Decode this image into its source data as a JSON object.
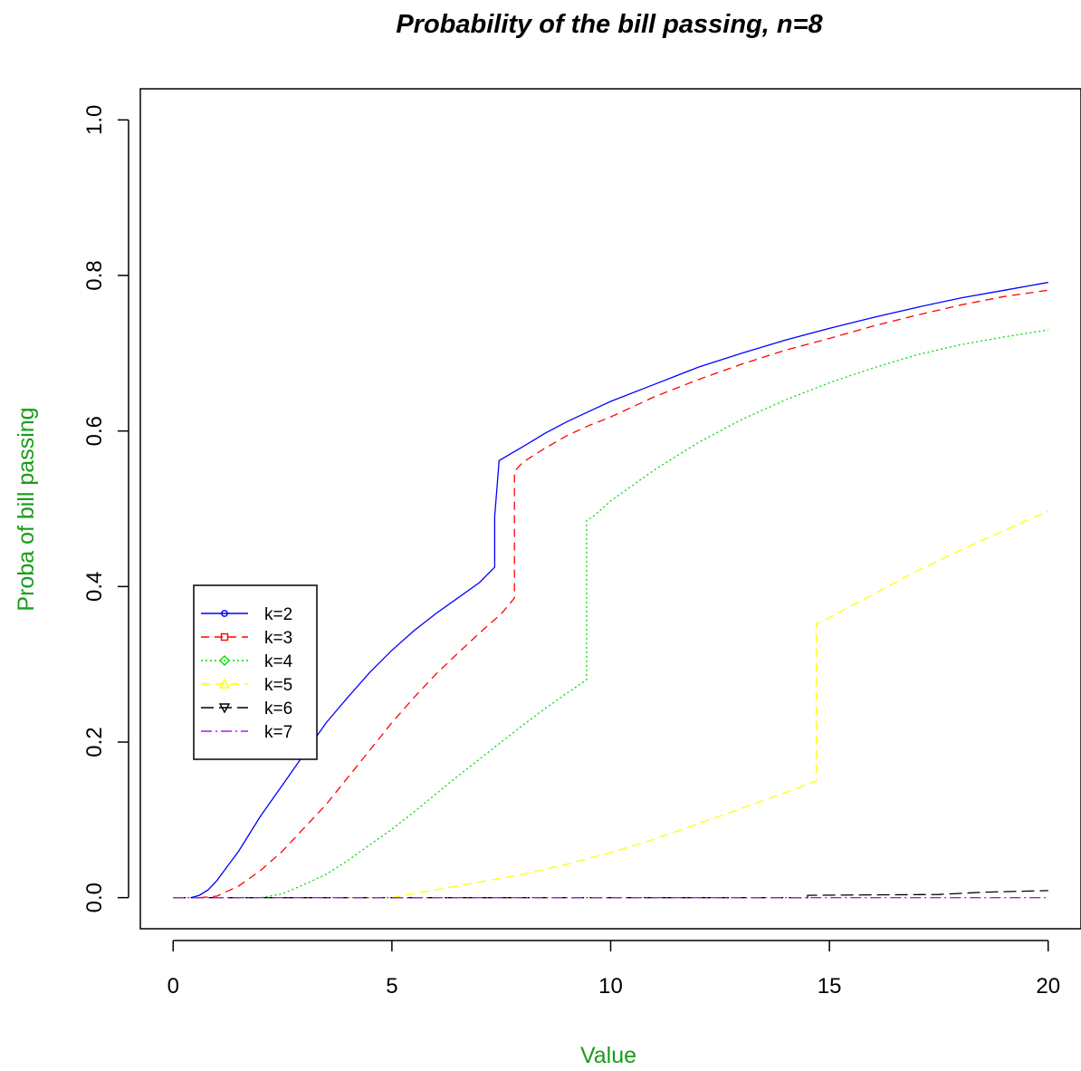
{
  "chart_data": {
    "type": "line",
    "title": "Probability of the bill passing, n=8",
    "xlabel": "Value",
    "ylabel": "Proba of bill passing",
    "label_color": "#1a9c1a",
    "xlim": [
      -0.75,
      20.75
    ],
    "ylim": [
      -0.04,
      1.04
    ],
    "x_ticks": [
      0,
      5,
      10,
      15,
      20
    ],
    "x_tick_labels": [
      "0",
      "5",
      "10",
      "15",
      "20"
    ],
    "y_ticks": [
      0.0,
      0.2,
      0.4,
      0.6,
      0.8,
      1.0
    ],
    "y_tick_labels": [
      "0.0",
      "0.2",
      "0.4",
      "0.6",
      "0.8",
      "1.0"
    ],
    "grid": false,
    "legend_position": "center-left",
    "series": [
      {
        "name": "k=2",
        "color": "#0000ff",
        "dash": "",
        "marker": "circle",
        "points": [
          [
            0.4,
            0.0
          ],
          [
            0.6,
            0.003
          ],
          [
            0.8,
            0.01
          ],
          [
            1.0,
            0.022
          ],
          [
            1.5,
            0.06
          ],
          [
            2.0,
            0.105
          ],
          [
            2.5,
            0.145
          ],
          [
            3.0,
            0.185
          ],
          [
            3.5,
            0.225
          ],
          [
            4.0,
            0.258
          ],
          [
            4.5,
            0.29
          ],
          [
            5.0,
            0.318
          ],
          [
            5.5,
            0.343
          ],
          [
            6.0,
            0.365
          ],
          [
            6.5,
            0.385
          ],
          [
            7.0,
            0.405
          ],
          [
            7.35,
            0.425
          ],
          [
            7.35,
            0.49
          ],
          [
            7.45,
            0.562
          ],
          [
            8.0,
            0.58
          ],
          [
            8.5,
            0.597
          ],
          [
            9.0,
            0.612
          ],
          [
            9.5,
            0.625
          ],
          [
            10.0,
            0.638
          ],
          [
            11.0,
            0.66
          ],
          [
            12.0,
            0.682
          ],
          [
            13.0,
            0.7
          ],
          [
            14.0,
            0.717
          ],
          [
            15.0,
            0.732
          ],
          [
            16.0,
            0.746
          ],
          [
            17.0,
            0.759
          ],
          [
            18.0,
            0.771
          ],
          [
            19.0,
            0.781
          ],
          [
            20.0,
            0.791
          ]
        ]
      },
      {
        "name": "k=3",
        "color": "#ff0000",
        "dash": "9,6",
        "marker": "square",
        "points": [
          [
            0.6,
            0.0
          ],
          [
            1.0,
            0.002
          ],
          [
            1.5,
            0.015
          ],
          [
            2.0,
            0.035
          ],
          [
            2.5,
            0.06
          ],
          [
            3.0,
            0.09
          ],
          [
            3.5,
            0.12
          ],
          [
            4.0,
            0.155
          ],
          [
            4.5,
            0.19
          ],
          [
            5.0,
            0.225
          ],
          [
            5.5,
            0.257
          ],
          [
            6.0,
            0.287
          ],
          [
            6.5,
            0.314
          ],
          [
            7.0,
            0.34
          ],
          [
            7.5,
            0.365
          ],
          [
            7.8,
            0.385
          ],
          [
            7.8,
            0.548
          ],
          [
            8.0,
            0.56
          ],
          [
            8.5,
            0.578
          ],
          [
            9.0,
            0.594
          ],
          [
            9.5,
            0.607
          ],
          [
            10.0,
            0.618
          ],
          [
            11.0,
            0.644
          ],
          [
            12.0,
            0.666
          ],
          [
            13.0,
            0.686
          ],
          [
            14.0,
            0.704
          ],
          [
            15.0,
            0.719
          ],
          [
            16.0,
            0.735
          ],
          [
            17.0,
            0.749
          ],
          [
            18.0,
            0.762
          ],
          [
            19.0,
            0.773
          ],
          [
            20.0,
            0.781
          ]
        ]
      },
      {
        "name": "k=4",
        "color": "#00dd00",
        "dash": "2,3",
        "marker": "diamond",
        "points": [
          [
            1.5,
            0.0
          ],
          [
            2.0,
            0.0
          ],
          [
            2.5,
            0.005
          ],
          [
            3.0,
            0.017
          ],
          [
            3.5,
            0.03
          ],
          [
            4.0,
            0.048
          ],
          [
            4.5,
            0.068
          ],
          [
            5.0,
            0.088
          ],
          [
            5.5,
            0.11
          ],
          [
            6.0,
            0.133
          ],
          [
            6.5,
            0.156
          ],
          [
            7.0,
            0.178
          ],
          [
            7.5,
            0.2
          ],
          [
            8.0,
            0.222
          ],
          [
            8.5,
            0.243
          ],
          [
            9.0,
            0.263
          ],
          [
            9.45,
            0.28
          ],
          [
            9.45,
            0.485
          ],
          [
            9.6,
            0.49
          ],
          [
            10.0,
            0.51
          ],
          [
            11.0,
            0.55
          ],
          [
            12.0,
            0.585
          ],
          [
            13.0,
            0.615
          ],
          [
            14.0,
            0.64
          ],
          [
            15.0,
            0.662
          ],
          [
            16.0,
            0.681
          ],
          [
            17.0,
            0.698
          ],
          [
            18.0,
            0.711
          ],
          [
            19.0,
            0.721
          ],
          [
            20.0,
            0.73
          ]
        ]
      },
      {
        "name": "k=5",
        "color": "#ffff00",
        "dash": "10,6",
        "marker": "triangle-up",
        "points": [
          [
            4.0,
            0.0
          ],
          [
            5.0,
            0.0
          ],
          [
            5.5,
            0.005
          ],
          [
            6.0,
            0.01
          ],
          [
            7.0,
            0.02
          ],
          [
            8.0,
            0.03
          ],
          [
            9.0,
            0.043
          ],
          [
            10.0,
            0.058
          ],
          [
            11.0,
            0.075
          ],
          [
            12.0,
            0.095
          ],
          [
            13.0,
            0.115
          ],
          [
            14.0,
            0.135
          ],
          [
            14.7,
            0.15
          ],
          [
            14.7,
            0.352
          ],
          [
            15.0,
            0.36
          ],
          [
            16.0,
            0.39
          ],
          [
            17.0,
            0.42
          ],
          [
            18.0,
            0.447
          ],
          [
            19.0,
            0.472
          ],
          [
            20.0,
            0.497
          ]
        ]
      },
      {
        "name": "k=6",
        "color": "#000000",
        "dash": "14,6",
        "marker": "triangle-down",
        "points": [
          [
            0.0,
            0.0
          ],
          [
            14.5,
            0.0
          ],
          [
            14.5,
            0.003
          ],
          [
            17.5,
            0.004
          ],
          [
            18.5,
            0.007
          ],
          [
            20.0,
            0.009
          ]
        ]
      },
      {
        "name": "k=7",
        "color": "#a020f0",
        "dash": "12,4,2,4",
        "marker": "none",
        "points": [
          [
            0.0,
            0.0
          ],
          [
            20.0,
            0.0
          ]
        ]
      }
    ]
  }
}
